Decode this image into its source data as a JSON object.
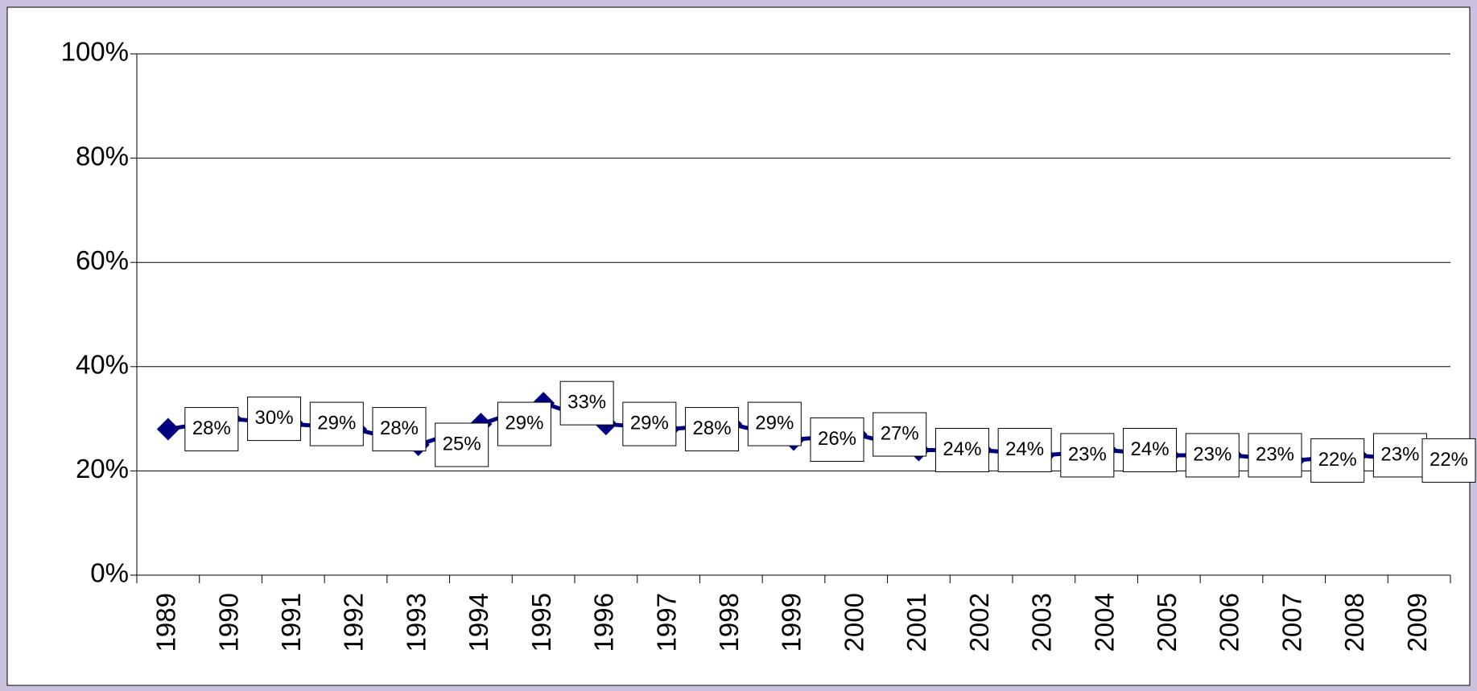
{
  "chart_data": {
    "type": "line",
    "categories": [
      "1989",
      "1990",
      "1991",
      "1992",
      "1993",
      "1994",
      "1995",
      "1996",
      "1997",
      "1998",
      "1999",
      "2000",
      "2001",
      "2002",
      "2003",
      "2004",
      "2005",
      "2006",
      "2007",
      "2008",
      "2009"
    ],
    "series": [
      {
        "color": "#000080",
        "values": [
          28,
          30,
          29,
          28,
          25,
          29,
          33,
          29,
          28,
          29,
          26,
          27,
          24,
          24,
          23,
          24,
          23,
          23,
          22,
          23,
          22
        ],
        "value_labels": [
          "28%",
          "30%",
          "29%",
          "28%",
          "25%",
          "29%",
          "33%",
          "29%",
          "28%",
          "29%",
          "26%",
          "27%",
          "24%",
          "24%",
          "23%",
          "24%",
          "23%",
          "23%",
          "22%",
          "23%",
          "22%"
        ]
      }
    ],
    "ylim": [
      0,
      100
    ],
    "yticks": [
      {
        "value": 0,
        "label": "0%"
      },
      {
        "value": 20,
        "label": "20%"
      },
      {
        "value": 40,
        "label": "40%"
      },
      {
        "value": 60,
        "label": "60%"
      },
      {
        "value": 80,
        "label": "80%"
      },
      {
        "value": 100,
        "label": "100%"
      }
    ],
    "grid": true
  }
}
